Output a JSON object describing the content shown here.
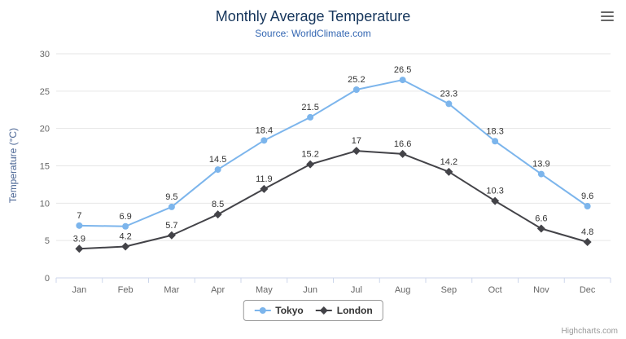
{
  "credits": "Highcharts.com",
  "colors": {
    "title": "#16365c",
    "subtitle": "#3366b2",
    "yaxis_title": "#4a6594",
    "axis_label": "#666666",
    "data_label": "#333333",
    "grid_line": "#e6e6e6",
    "axis_line": "#ccd6eb",
    "credits": "#999999",
    "legend_border": "#999999"
  },
  "icons": {
    "context_menu": "hamburger-menu-icon"
  },
  "chart_data": {
    "type": "line",
    "title": "Monthly Average Temperature",
    "subtitle": "Source: WorldClimate.com",
    "xlabel": "",
    "ylabel": "Temperature (°C)",
    "ylim": [
      0,
      30
    ],
    "ytick_interval": 5,
    "grid": true,
    "legend_position": "bottom",
    "data_labels": true,
    "categories": [
      "Jan",
      "Feb",
      "Mar",
      "Apr",
      "May",
      "Jun",
      "Jul",
      "Aug",
      "Sep",
      "Oct",
      "Nov",
      "Dec"
    ],
    "series": [
      {
        "name": "Tokyo",
        "color": "#7cb5ec",
        "marker": "circle",
        "values": [
          7,
          6.9,
          9.5,
          14.5,
          18.4,
          21.5,
          25.2,
          26.5,
          23.3,
          18.3,
          13.9,
          9.6
        ]
      },
      {
        "name": "London",
        "color": "#434348",
        "marker": "diamond",
        "values": [
          3.9,
          4.2,
          5.7,
          8.5,
          11.9,
          15.2,
          17,
          16.6,
          14.2,
          10.3,
          6.6,
          4.8
        ]
      }
    ]
  }
}
